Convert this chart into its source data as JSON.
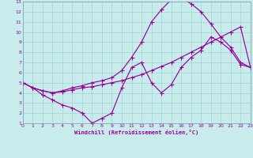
{
  "xlabel": "Windchill (Refroidissement éolien,°C)",
  "xlim": [
    0,
    23
  ],
  "ylim": [
    1,
    13
  ],
  "xticks": [
    0,
    1,
    2,
    3,
    4,
    5,
    6,
    7,
    8,
    9,
    10,
    11,
    12,
    13,
    14,
    15,
    16,
    17,
    18,
    19,
    20,
    21,
    22,
    23
  ],
  "yticks": [
    1,
    2,
    3,
    4,
    5,
    6,
    7,
    8,
    9,
    10,
    11,
    12,
    13
  ],
  "bg_color": "#c8ecec",
  "line_color": "#990099",
  "grid_color": "#99cccc",
  "line1_x": [
    0,
    1,
    2,
    3,
    4,
    5,
    6,
    7,
    8,
    9,
    10,
    11,
    12,
    13,
    14,
    15,
    16,
    17,
    18,
    19,
    20,
    21,
    22,
    23
  ],
  "line1_y": [
    5.0,
    4.5,
    3.8,
    3.3,
    2.8,
    2.5,
    2.0,
    1.0,
    1.5,
    2.0,
    4.5,
    6.5,
    7.0,
    5.0,
    4.0,
    4.8,
    6.5,
    7.5,
    8.2,
    9.5,
    9.0,
    8.2,
    6.8,
    6.5
  ],
  "line2_x": [
    0,
    1,
    2,
    3,
    4,
    5,
    6,
    7,
    8,
    9,
    10,
    11,
    12,
    13,
    14,
    15,
    16,
    17,
    18,
    19,
    20,
    21,
    22,
    23
  ],
  "line2_y": [
    5.0,
    4.5,
    4.2,
    4.0,
    4.1,
    4.3,
    4.5,
    4.6,
    4.8,
    5.0,
    5.2,
    5.5,
    5.8,
    6.2,
    6.6,
    7.0,
    7.5,
    8.0,
    8.5,
    9.0,
    9.5,
    10.0,
    10.5,
    6.5
  ],
  "line3_x": [
    0,
    1,
    2,
    3,
    4,
    5,
    6,
    7,
    8,
    9,
    10,
    11,
    12,
    13,
    14,
    15,
    16,
    17,
    18,
    19,
    20,
    21,
    22,
    23
  ],
  "line3_y": [
    5.0,
    4.5,
    4.2,
    4.0,
    4.2,
    4.5,
    4.7,
    5.0,
    5.2,
    5.5,
    6.2,
    7.5,
    9.0,
    11.0,
    12.2,
    13.2,
    13.3,
    12.8,
    12.0,
    10.8,
    9.5,
    8.5,
    7.0,
    6.5
  ]
}
